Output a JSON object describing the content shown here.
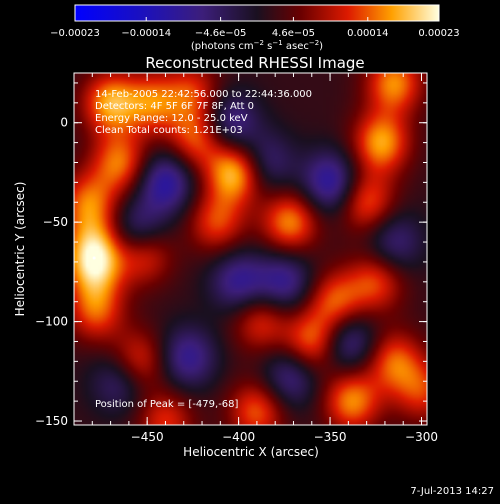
{
  "chart_data": {
    "type": "heatmap",
    "title": "Reconstructed RHESSI Image",
    "xlabel": "Heliocentric X (arcsec)",
    "ylabel": "Heliocentric Y (arcsec)",
    "xlim": [
      -490,
      -297
    ],
    "ylim": [
      -152,
      25
    ],
    "x_ticks": [
      -450,
      -400,
      -350,
      -300
    ],
    "x_tick_labels": [
      "−450",
      "−400",
      "−350",
      "−300"
    ],
    "y_ticks": [
      0,
      -50,
      -100,
      -150
    ],
    "y_tick_labels": [
      "0",
      "−50",
      "−100",
      "−150"
    ],
    "annotations": [
      "14-Feb-2005 22:42:56.000 to 22:44:36.000",
      "Detectors: 4F 5F 6F 7F 8F, Att 0",
      "Energy Range: 12.0 - 25.0 keV",
      "Clean    Total counts: 1.21E+03"
    ],
    "peak_label": "Position of Peak = [-479,-68]",
    "peak": [
      -479,
      -68
    ],
    "colorbar": {
      "range": [
        -0.00023,
        0.00023
      ],
      "ticks": [
        -0.00023,
        -0.00014,
        -4.6e-05,
        4.6e-05,
        0.00014,
        0.00023
      ],
      "tick_labels": [
        "−0.00023",
        "−0.00014",
        "−4.6e−05",
        "4.6e−05",
        "0.00014",
        "0.00023"
      ],
      "unit_parts": [
        "(photons cm",
        "−2",
        " s",
        "−1",
        " asec",
        "−2",
        ")"
      ]
    },
    "blobs": [
      {
        "x": -479,
        "y": -68,
        "v": 1.0
      },
      {
        "x": -482,
        "y": -40,
        "v": 0.55
      },
      {
        "x": -478,
        "y": -95,
        "v": 0.5
      },
      {
        "x": -470,
        "y": 10,
        "v": 0.7
      },
      {
        "x": -465,
        "y": -20,
        "v": 0.6
      },
      {
        "x": -447,
        "y": 10,
        "v": 0.55
      },
      {
        "x": -452,
        "y": -65,
        "v": 0.6
      },
      {
        "x": -455,
        "y": -120,
        "v": 0.5
      },
      {
        "x": -440,
        "y": -150,
        "v": 0.45
      },
      {
        "x": -425,
        "y": 15,
        "v": 0.45
      },
      {
        "x": -423,
        "y": -8,
        "v": 0.55
      },
      {
        "x": -412,
        "y": -50,
        "v": 0.5
      },
      {
        "x": -402,
        "y": -25,
        "v": 0.8
      },
      {
        "x": -388,
        "y": -100,
        "v": 0.45
      },
      {
        "x": -390,
        "y": -145,
        "v": 0.55
      },
      {
        "x": -372,
        "y": -50,
        "v": 0.65
      },
      {
        "x": -360,
        "y": -110,
        "v": 0.6
      },
      {
        "x": -347,
        "y": -90,
        "v": 0.55
      },
      {
        "x": -338,
        "y": -140,
        "v": 0.65
      },
      {
        "x": -330,
        "y": -40,
        "v": 0.55
      },
      {
        "x": -322,
        "y": -10,
        "v": 0.7
      },
      {
        "x": -325,
        "y": -80,
        "v": 0.5
      },
      {
        "x": -315,
        "y": -120,
        "v": 0.55
      },
      {
        "x": -315,
        "y": 20,
        "v": 0.65
      },
      {
        "x": -300,
        "y": -135,
        "v": 0.45
      },
      {
        "x": -440,
        "y": -30,
        "v": -0.6
      },
      {
        "x": -455,
        "y": -55,
        "v": -0.55
      },
      {
        "x": -465,
        "y": -130,
        "v": -0.4
      },
      {
        "x": -405,
        "y": 0,
        "v": -0.5
      },
      {
        "x": -385,
        "y": -20,
        "v": -0.4
      },
      {
        "x": -350,
        "y": -30,
        "v": -0.6
      },
      {
        "x": -400,
        "y": -80,
        "v": -0.5
      },
      {
        "x": -375,
        "y": -80,
        "v": -0.5
      },
      {
        "x": -340,
        "y": -110,
        "v": -0.5
      },
      {
        "x": -372,
        "y": -128,
        "v": -0.45
      },
      {
        "x": -315,
        "y": -60,
        "v": -0.4
      },
      {
        "x": -428,
        "y": -118,
        "v": -0.5
      }
    ]
  },
  "footer": {
    "timestamp": "7-Jul-2013 14:27"
  }
}
